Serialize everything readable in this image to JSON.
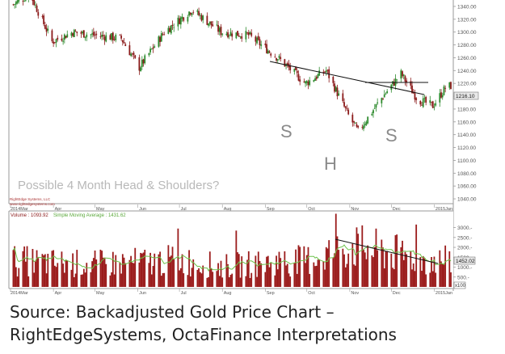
{
  "colors": {
    "up_candle": "#2e8b2e",
    "down_candle": "#8b1a1a",
    "volume_bar": "#9b1c1c",
    "volume_ma": "#6cc24a",
    "trendline": "#111111",
    "pattern_letters": "#8a8a8a",
    "annotation": "#b8b8b8",
    "price_badge": "#e8e8e8"
  },
  "chart_data": [
    {
      "type": "candlestick",
      "title": "",
      "price_axis": {
        "ylim": [
          1035,
          1350
        ],
        "ticks": [
          1340,
          1320,
          1300,
          1280,
          1260,
          1240,
          1220,
          1200,
          1180,
          1160,
          1140,
          1120,
          1100,
          1080,
          1060,
          1040
        ],
        "tick_labels": [
          "1340.00",
          "1320.00",
          "1300.00",
          "1280.00",
          "1260.00",
          "1240.00",
          "1220.00",
          "1200.00",
          "1180.00",
          "1160.00",
          "1140.00",
          "1120.00",
          "1100.00",
          "1080.00",
          "1060.00",
          "1040.00"
        ],
        "grid": false
      },
      "last_price_label": "1216.10",
      "x_axis_labels": [
        "2014Mar",
        "Apr",
        "May",
        "Jun",
        "Jul",
        "Aug",
        "Sep",
        "Oct",
        "Nov",
        "Dec",
        "2015Jan"
      ],
      "series_anchors": {
        "x_months": [
          "2014Mar",
          "Apr",
          "May",
          "Jun",
          "Jul",
          "Aug",
          "Sep",
          "Oct",
          "Nov",
          "Dec",
          "2015Jan"
        ],
        "close_profile": [
          [
            "2014-03-01",
            1340
          ],
          [
            "2014-03-15",
            1360
          ],
          [
            "2014-03-31",
            1285
          ],
          [
            "2014-04-15",
            1300
          ],
          [
            "2014-05-01",
            1295
          ],
          [
            "2014-05-20",
            1290
          ],
          [
            "2014-06-02",
            1245
          ],
          [
            "2014-06-20",
            1300
          ],
          [
            "2014-07-10",
            1335
          ],
          [
            "2014-07-31",
            1300
          ],
          [
            "2014-08-20",
            1295
          ],
          [
            "2014-09-10",
            1260
          ],
          [
            "2014-09-30",
            1220
          ],
          [
            "2014-10-15",
            1240
          ],
          [
            "2014-10-31",
            1170
          ],
          [
            "2014-11-07",
            1145
          ],
          [
            "2014-11-25",
            1200
          ],
          [
            "2014-12-08",
            1235
          ],
          [
            "2014-12-20",
            1195
          ],
          [
            "2014-12-31",
            1185
          ],
          [
            "2015-01-10",
            1216
          ]
        ]
      },
      "annotations": {
        "left_shoulder": "S",
        "head": "H",
        "right_shoulder": "S",
        "pattern_text": "Possible 4 Month Head & Shoulders?",
        "credit_line_1": "RightEdge Systems, LLC",
        "credit_line_2": "www.rightedgesystems.com"
      }
    },
    {
      "type": "bar",
      "title": "",
      "legend": "Volume: 1093.92 · Simple Moving Average: 1431.62",
      "volume_label": "Volume",
      "volume_value": "1093.92",
      "ma_label": "Simple Moving Average",
      "ma_value": "1431.62",
      "y_axis": {
        "ylim": [
          0,
          3800
        ],
        "ticks": [
          3000,
          2500,
          2000,
          1500,
          1000,
          500
        ],
        "tick_labels": [
          "3000.-",
          "2500.-",
          "2000.-",
          "1500.-",
          "1000.-",
          "500.-"
        ],
        "bottom_label": "x100"
      },
      "last_value_label": "1452.02",
      "x_axis_labels": [
        "2014Mar",
        "Apr",
        "May",
        "Jun",
        "Jul",
        "Aug",
        "Sep",
        "Oct",
        "Nov",
        "Dec",
        "2015Jan"
      ],
      "volume_profile": [
        [
          "2014-03-01",
          1500
        ],
        [
          "2014-04-01",
          1350
        ],
        [
          "2014-05-01",
          1300
        ],
        [
          "2014-06-01",
          1400
        ],
        [
          "2014-07-01",
          1500
        ],
        [
          "2014-08-01",
          1150
        ],
        [
          "2014-09-01",
          1350
        ],
        [
          "2014-10-01",
          1500
        ],
        [
          "2014-11-01",
          2300
        ],
        [
          "2014-12-01",
          1900
        ],
        [
          "2015-01-01",
          1450
        ]
      ]
    }
  ],
  "caption": {
    "line1": "Source: Backadjusted Gold Price Chart –",
    "line2": "RightEdgeSystems, OctaFinance Interpretations"
  }
}
